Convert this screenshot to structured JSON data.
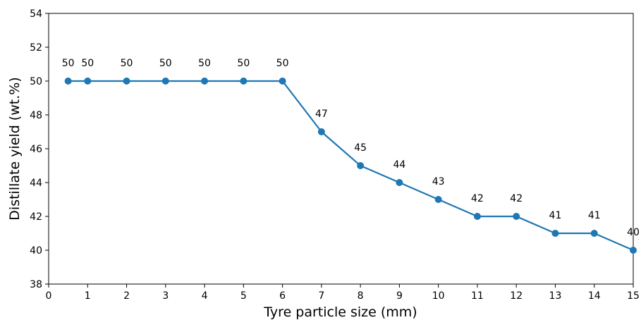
{
  "chart_data": {
    "type": "line",
    "xlabel": "Tyre particle size (mm)",
    "ylabel": "Distillate yield (wt.%)",
    "xlim": [
      0,
      15
    ],
    "ylim": [
      38,
      54
    ],
    "xticks": [
      "0",
      "1",
      "2",
      "3",
      "4",
      "5",
      "6",
      "7",
      "8",
      "9",
      "10",
      "11",
      "12",
      "13",
      "14",
      "15"
    ],
    "yticks": [
      "38",
      "40",
      "42",
      "44",
      "46",
      "48",
      "50",
      "52",
      "54"
    ],
    "grid": false,
    "legend": "none",
    "series": [
      {
        "color": "#1f77b4",
        "x": [
          0.5,
          1,
          2,
          3,
          4,
          5,
          6,
          7,
          8,
          9,
          10,
          11,
          12,
          13,
          14,
          15
        ],
        "y": [
          50,
          50,
          50,
          50,
          50,
          50,
          50,
          47,
          45,
          44,
          43,
          42,
          42,
          41,
          41,
          40
        ],
        "labels": [
          "50",
          "50",
          "50",
          "50",
          "50",
          "50",
          "50",
          "47",
          "45",
          "44",
          "43",
          "42",
          "42",
          "41",
          "41",
          "40"
        ]
      }
    ]
  }
}
